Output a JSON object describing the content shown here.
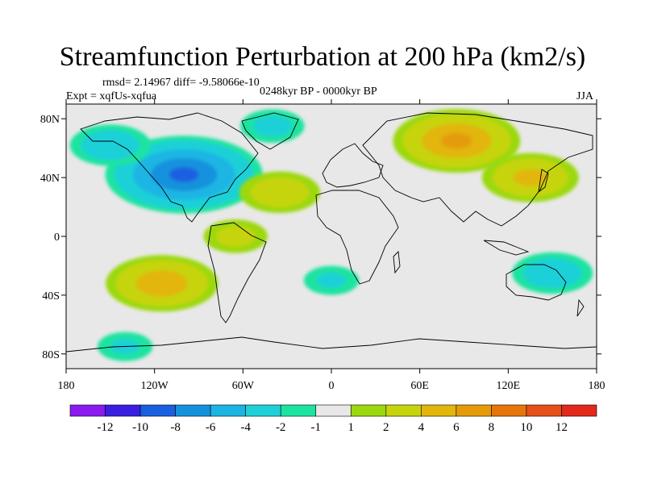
{
  "chart_data": {
    "type": "heatmap",
    "title": "Streamfunction Perturbation at 200 hPa (km2/s)",
    "stats": "rmsd= 2.14967 diff= -9.58066e-10",
    "experiment": "Expt = xqfUs-xqfua",
    "period": "0248kyr BP - 0000kyr BP",
    "season": "JJA",
    "x_ticks": [
      "180",
      "120W",
      "60W",
      "0",
      "60E",
      "120E",
      "180"
    ],
    "y_ticks": [
      "80N",
      "40N",
      "0",
      "40S",
      "80S"
    ],
    "xlim": [
      -180,
      180
    ],
    "ylim": [
      -90,
      90
    ],
    "colorbar": {
      "labels": [
        "-12",
        "-10",
        "-8",
        "-6",
        "-4",
        "-2",
        "-1",
        "1",
        "2",
        "4",
        "6",
        "8",
        "10",
        "12"
      ],
      "colors": [
        "#8b1aef",
        "#3a1fe3",
        "#1a5fe0",
        "#1491dd",
        "#1bb5e4",
        "#1fd0d8",
        "#1de3a0",
        "#e8e8e8",
        "#9bd80f",
        "#c6d40e",
        "#e2b60b",
        "#e59b09",
        "#e6760a",
        "#e5501b",
        "#e2291b"
      ]
    },
    "anomalies": [
      {
        "name": "north-america-negative",
        "lon": -100,
        "lat": 42,
        "value": -9
      },
      {
        "name": "north-pacific-negative",
        "lon": -150,
        "lat": 62,
        "value": -4
      },
      {
        "name": "arctic-atlantic-negative",
        "lon": -40,
        "lat": 75,
        "value": -3
      },
      {
        "name": "siberia-positive",
        "lon": 85,
        "lat": 65,
        "value": 7
      },
      {
        "name": "east-asia-positive",
        "lon": 135,
        "lat": 40,
        "value": 5
      },
      {
        "name": "south-pacific-positive",
        "lon": -115,
        "lat": -32,
        "value": 6
      },
      {
        "name": "south-atlantic-negative",
        "lon": 0,
        "lat": -30,
        "value": -2.5
      },
      {
        "name": "australia-negative",
        "lon": 150,
        "lat": -25,
        "value": -4
      },
      {
        "name": "southern-ocean-negative",
        "lon": -140,
        "lat": -75,
        "value": -2.5
      },
      {
        "name": "north-atlantic-positive",
        "lon": -35,
        "lat": 30,
        "value": 4
      },
      {
        "name": "tropical-atlantic-positive",
        "lon": -65,
        "lat": 0,
        "value": 3
      }
    ]
  }
}
